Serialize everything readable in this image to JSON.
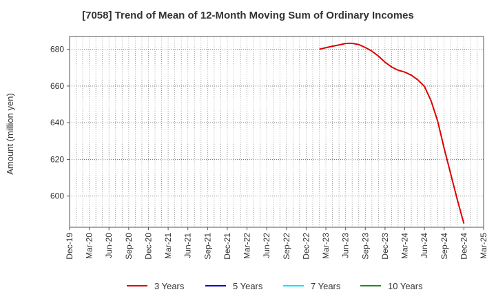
{
  "chart_data": {
    "type": "line",
    "title": "[7058]  Trend of Mean of 12-Month Moving Sum of Ordinary Incomes",
    "xlabel": "",
    "ylabel": "Amount (million yen)",
    "x_ticks": [
      "Dec-19",
      "Mar-20",
      "Jun-20",
      "Sep-20",
      "Dec-20",
      "Mar-21",
      "Jun-21",
      "Sep-21",
      "Dec-21",
      "Mar-22",
      "Jun-22",
      "Sep-22",
      "Dec-22",
      "Mar-23",
      "Jun-23",
      "Sep-23",
      "Dec-23",
      "Mar-24",
      "Jun-24",
      "Sep-24",
      "Dec-24",
      "Mar-25"
    ],
    "x_range": [
      "2019-12",
      "2025-03"
    ],
    "y_ticks": [
      600,
      620,
      640,
      660,
      680
    ],
    "ylim": [
      583,
      687
    ],
    "grid": true,
    "legend_position": "bottom",
    "series": [
      {
        "name": "3 Years",
        "color": "#dd0000",
        "points": [
          [
            "2023-02",
            680.0
          ],
          [
            "2023-03",
            680.9
          ],
          [
            "2023-04",
            681.7
          ],
          [
            "2023-05",
            682.4
          ],
          [
            "2023-06",
            683.2
          ],
          [
            "2023-07",
            683.3
          ],
          [
            "2023-08",
            682.6
          ],
          [
            "2023-09",
            681.0
          ],
          [
            "2023-10",
            679.0
          ],
          [
            "2023-11",
            676.3
          ],
          [
            "2023-12",
            673.0
          ],
          [
            "2024-01",
            670.4
          ],
          [
            "2024-02",
            668.6
          ],
          [
            "2024-03",
            667.6
          ],
          [
            "2024-04",
            665.9
          ],
          [
            "2024-05",
            663.3
          ],
          [
            "2024-06",
            659.8
          ],
          [
            "2024-07",
            652.0
          ],
          [
            "2024-08",
            641.0
          ],
          [
            "2024-09",
            626.0
          ],
          [
            "2024-10",
            612.0
          ],
          [
            "2024-11",
            598.0
          ],
          [
            "2024-12",
            585.0
          ]
        ]
      },
      {
        "name": "5 Years",
        "color": "#0000cc",
        "points": []
      },
      {
        "name": "7 Years",
        "color": "#00e5ff",
        "points": []
      },
      {
        "name": "10 Years",
        "color": "#228b22",
        "points": []
      }
    ]
  }
}
